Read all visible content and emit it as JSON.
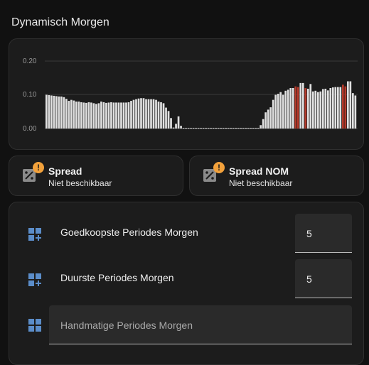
{
  "card_title": "Dynamisch Morgen",
  "colors": {
    "bar_normal": "#e0e0e0",
    "bar_highlight": "#b5392a",
    "badge": "#f2a13b",
    "icon_blue": "#5b8dc9",
    "background": "#111111",
    "card": "#1c1c1c"
  },
  "chart_data": {
    "type": "bar",
    "yticks": [
      "0.20",
      "0.10",
      "0.00"
    ],
    "ylim": [
      0,
      0.2
    ],
    "grid": true,
    "values": [
      0.1,
      0.099,
      0.098,
      0.097,
      0.096,
      0.095,
      0.095,
      0.093,
      0.088,
      0.082,
      0.085,
      0.083,
      0.08,
      0.08,
      0.078,
      0.077,
      0.076,
      0.078,
      0.077,
      0.075,
      0.073,
      0.075,
      0.08,
      0.078,
      0.076,
      0.077,
      0.078,
      0.077,
      0.077,
      0.077,
      0.077,
      0.077,
      0.077,
      0.078,
      0.082,
      0.085,
      0.087,
      0.089,
      0.09,
      0.09,
      0.087,
      0.087,
      0.087,
      0.087,
      0.085,
      0.08,
      0.078,
      0.075,
      0.062,
      0.052,
      0.031,
      0.003,
      0.014,
      0.036,
      0.008,
      0.001,
      0.001,
      0.001,
      0.001,
      0.001,
      0.001,
      0.001,
      0.001,
      0.001,
      0.001,
      0.001,
      0.002,
      0.002,
      0.002,
      0.001,
      0.001,
      0.001,
      0.001,
      0.001,
      0.001,
      0.001,
      0.001,
      0.001,
      0.001,
      0.001,
      0.001,
      0.001,
      0.001,
      0.001,
      0.001,
      0.001,
      0.01,
      0.028,
      0.048,
      0.056,
      0.063,
      0.085,
      0.1,
      0.103,
      0.108,
      0.1,
      0.112,
      0.115,
      0.12,
      0.12,
      0.125,
      0.123,
      0.135,
      0.135,
      0.12,
      0.118,
      0.132,
      0.11,
      0.112,
      0.108,
      0.11,
      0.117,
      0.118,
      0.113,
      0.12,
      0.122,
      0.123,
      0.123,
      0.123,
      0.13,
      0.125,
      0.14,
      0.14,
      0.105,
      0.098
    ],
    "highlighted": [
      100,
      101,
      104,
      119,
      120
    ]
  },
  "tiles": [
    {
      "name": "Spread",
      "state": "Niet beschikbaar",
      "icon": "percent-box-icon",
      "badge": "!"
    },
    {
      "name": "Spread NOM",
      "state": "Niet beschikbaar",
      "icon": "percent-box-icon",
      "badge": "!"
    }
  ],
  "entities": [
    {
      "label": "Goedkoopste Periodes Morgen",
      "value": "5",
      "icon": "view-grid-plus-icon"
    },
    {
      "label": "Duurste Periodes Morgen",
      "value": "5",
      "icon": "view-grid-plus-icon"
    },
    {
      "label": "Handmatige Periodes Morgen",
      "icon": "view-grid-icon"
    }
  ]
}
